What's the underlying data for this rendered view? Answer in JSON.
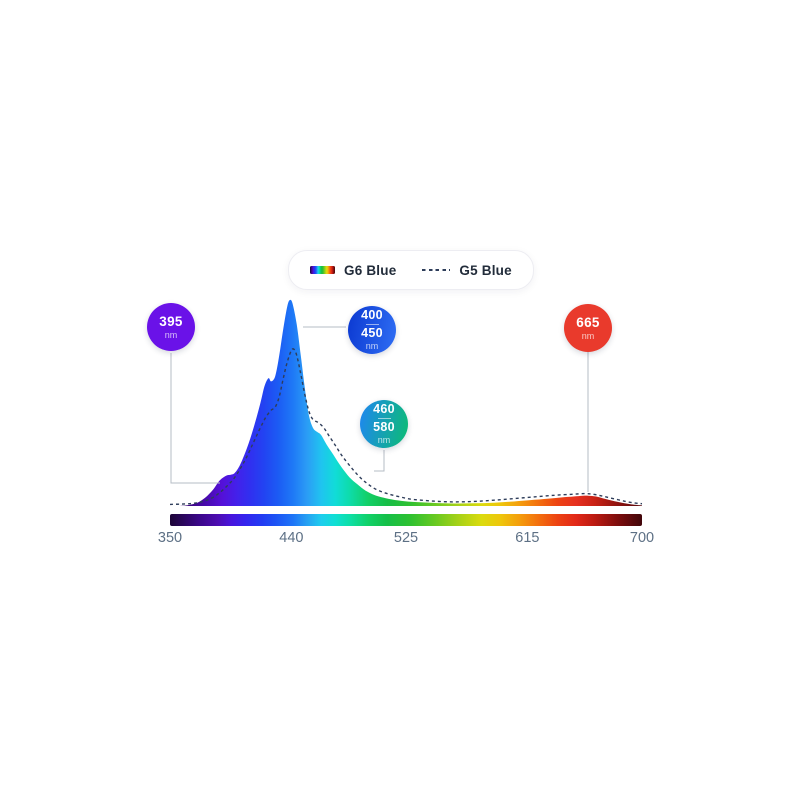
{
  "legend": {
    "items": [
      {
        "label": "G6 Blue",
        "swatch": "spectrum-gradient-bar"
      },
      {
        "label": "G5 Blue",
        "swatch": "dashed-line"
      }
    ]
  },
  "badges": [
    {
      "values": [
        "395"
      ],
      "unit": "nm",
      "color1": "#6a12e8"
    },
    {
      "values": [
        "400",
        "450"
      ],
      "unit": "nm",
      "color1": "#0b38d1",
      "color2": "#2f6ef4"
    },
    {
      "values": [
        "460",
        "580"
      ],
      "unit": "nm",
      "color1": "#1f86f2",
      "color2": "#0cbd72"
    },
    {
      "values": [
        "665"
      ],
      "unit": "nm",
      "color1": "#e93a2c"
    }
  ],
  "axis": {
    "ticks": [
      "350",
      "440",
      "525",
      "615",
      "700"
    ],
    "color": "#5d7085"
  },
  "spectrum_bar": {
    "stops": [
      [
        "0%",
        "#1d0537"
      ],
      [
        "6%",
        "#3a0787"
      ],
      [
        "10%",
        "#4d0cb0"
      ],
      [
        "13%",
        "#4815dd"
      ],
      [
        "16%",
        "#3424ee"
      ],
      [
        "19%",
        "#2438f2"
      ],
      [
        "22%",
        "#1d50f4"
      ],
      [
        "26%",
        "#1e74f7"
      ],
      [
        "29%",
        "#27a0f2"
      ],
      [
        "32%",
        "#1ecdee"
      ],
      [
        "35%",
        "#10dfd4"
      ],
      [
        "38%",
        "#0edfa8"
      ],
      [
        "42%",
        "#11d168"
      ],
      [
        "46%",
        "#15bf48"
      ],
      [
        "51%",
        "#2fc130"
      ],
      [
        "56%",
        "#66c922"
      ],
      [
        "61%",
        "#a5d117"
      ],
      [
        "66%",
        "#dbdb0e"
      ],
      [
        "70%",
        "#eec60b"
      ],
      [
        "74%",
        "#f49e0c"
      ],
      [
        "78%",
        "#f3700e"
      ],
      [
        "82%",
        "#ed4412"
      ],
      [
        "86%",
        "#e22818"
      ],
      [
        "90%",
        "#bb1a12"
      ],
      [
        "95%",
        "#7c0d0d"
      ],
      [
        "100%",
        "#41060a"
      ]
    ]
  },
  "chart_data": {
    "type": "area",
    "title": "",
    "xlabel": "",
    "ylabel": "",
    "x_range": [
      350,
      700
    ],
    "y_range": [
      0,
      100
    ],
    "x_tick_labels": [
      "350",
      "440",
      "525",
      "615",
      "700"
    ],
    "grid": false,
    "legend_position": "top-center",
    "annotations_nm": [
      "395",
      "400-450",
      "460-580",
      "665"
    ],
    "fill_gradient_stops": [
      [
        "0%",
        "#2f0750"
      ],
      [
        "7%",
        "#4609a5"
      ],
      [
        "11%",
        "#5510d8"
      ],
      [
        "14%",
        "#4420ea"
      ],
      [
        "17%",
        "#3030f0"
      ],
      [
        "20%",
        "#2244f2"
      ],
      [
        "23%",
        "#1c5cf4"
      ],
      [
        "26%",
        "#1e78f6"
      ],
      [
        "29%",
        "#2b9cf5"
      ],
      [
        "32%",
        "#20c3f0"
      ],
      [
        "35%",
        "#11dcd8"
      ],
      [
        "38%",
        "#0edcab"
      ],
      [
        "42%",
        "#12cf66"
      ],
      [
        "46%",
        "#16bd47"
      ],
      [
        "51%",
        "#30c130"
      ],
      [
        "56%",
        "#68c922"
      ],
      [
        "61%",
        "#a6d117"
      ],
      [
        "66%",
        "#dcdb0e"
      ],
      [
        "70%",
        "#eec60b"
      ],
      [
        "74%",
        "#f49e0c"
      ],
      [
        "78%",
        "#f3700e"
      ],
      [
        "82%",
        "#ed4412"
      ],
      [
        "86%",
        "#e63020"
      ],
      [
        "90%",
        "#c92215"
      ],
      [
        "95%",
        "#8c120f"
      ],
      [
        "100%",
        "#58090c"
      ]
    ],
    "series": [
      {
        "name": "G6 Blue",
        "type": "area",
        "style": "filled-with-spectral-gradient",
        "points": [
          [
            356,
            0
          ],
          [
            363,
            0.4
          ],
          [
            370,
            1.5
          ],
          [
            376,
            4
          ],
          [
            382,
            8
          ],
          [
            387,
            12.5
          ],
          [
            392,
            14.8
          ],
          [
            395,
            15.2
          ],
          [
            398,
            16
          ],
          [
            402,
            20
          ],
          [
            407,
            28
          ],
          [
            412,
            38
          ],
          [
            417,
            50
          ],
          [
            420,
            58
          ],
          [
            423,
            62
          ],
          [
            425,
            60.5
          ],
          [
            428,
            63
          ],
          [
            431,
            73
          ],
          [
            434,
            86
          ],
          [
            437,
            97
          ],
          [
            439,
            100
          ],
          [
            441,
            98
          ],
          [
            444,
            88
          ],
          [
            447,
            73
          ],
          [
            450,
            57
          ],
          [
            453,
            44
          ],
          [
            456,
            38
          ],
          [
            459,
            36
          ],
          [
            462,
            34.5
          ],
          [
            466,
            30
          ],
          [
            471,
            25
          ],
          [
            477,
            19
          ],
          [
            483,
            14
          ],
          [
            489,
            10.5
          ],
          [
            495,
            7.5
          ],
          [
            502,
            5.2
          ],
          [
            510,
            3.8
          ],
          [
            519,
            2.7
          ],
          [
            530,
            2
          ],
          [
            545,
            1.5
          ],
          [
            560,
            1.2
          ],
          [
            575,
            1.3
          ],
          [
            590,
            1.6
          ],
          [
            605,
            2.2
          ],
          [
            620,
            3
          ],
          [
            634,
            3.8
          ],
          [
            645,
            4.4
          ],
          [
            653,
            4.8
          ],
          [
            660,
            5
          ],
          [
            666,
            4.6
          ],
          [
            673,
            3.4
          ],
          [
            682,
            2
          ],
          [
            691,
            0.9
          ],
          [
            700,
            0.3
          ]
        ]
      },
      {
        "name": "G5 Blue",
        "type": "line",
        "style": "dashed",
        "color": "#2e3d5a",
        "points": [
          [
            350,
            0.8
          ],
          [
            358,
            0.9
          ],
          [
            366,
            1.2
          ],
          [
            373,
            2
          ],
          [
            380,
            3.5
          ],
          [
            386,
            6
          ],
          [
            392,
            9.5
          ],
          [
            397,
            13
          ],
          [
            402,
            18
          ],
          [
            407,
            24
          ],
          [
            412,
            31
          ],
          [
            417,
            38
          ],
          [
            421,
            43
          ],
          [
            425,
            46.5
          ],
          [
            428,
            48
          ],
          [
            431,
            53
          ],
          [
            434,
            62
          ],
          [
            437,
            70
          ],
          [
            440,
            75.5
          ],
          [
            442,
            76
          ],
          [
            444,
            73
          ],
          [
            447,
            64
          ],
          [
            450,
            54
          ],
          [
            453,
            46
          ],
          [
            456,
            42
          ],
          [
            460,
            40.5
          ],
          [
            464,
            38
          ],
          [
            468,
            34
          ],
          [
            473,
            29
          ],
          [
            478,
            24
          ],
          [
            484,
            19
          ],
          [
            490,
            14.5
          ],
          [
            496,
            11
          ],
          [
            503,
            8
          ],
          [
            511,
            6
          ],
          [
            520,
            4.5
          ],
          [
            530,
            3.2
          ],
          [
            545,
            2.4
          ],
          [
            560,
            2
          ],
          [
            575,
            2.2
          ],
          [
            590,
            2.8
          ],
          [
            605,
            3.6
          ],
          [
            620,
            4.4
          ],
          [
            635,
            5.2
          ],
          [
            648,
            5.7
          ],
          [
            658,
            6
          ],
          [
            665,
            5.6
          ],
          [
            672,
            4.6
          ],
          [
            680,
            3.4
          ],
          [
            688,
            2.2
          ],
          [
            695,
            1.4
          ],
          [
            700,
            1.1
          ]
        ]
      }
    ]
  }
}
